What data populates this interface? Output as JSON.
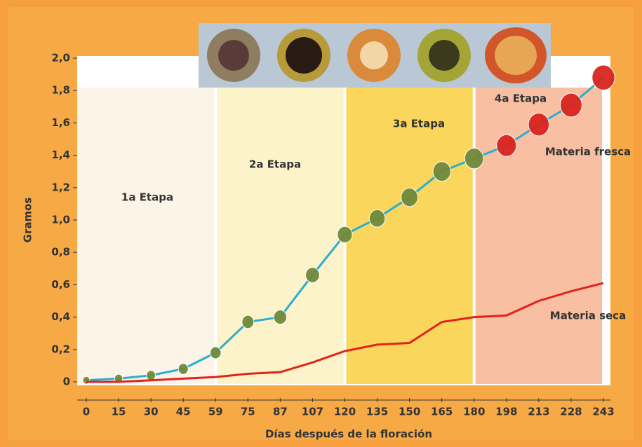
{
  "chart_data": {
    "type": "line",
    "x_label": "Días después de la floración",
    "y_label": "Gramos",
    "categories": [
      "0",
      "15",
      "30",
      "45",
      "59",
      "75",
      "87",
      "107",
      "120",
      "135",
      "150",
      "165",
      "180",
      "198",
      "213",
      "228",
      "243"
    ],
    "series": [
      {
        "name": "Materia fresca",
        "color": "#2aaed0",
        "values": [
          0.01,
          0.02,
          0.04,
          0.08,
          0.18,
          0.37,
          0.4,
          0.66,
          0.91,
          1.01,
          1.14,
          1.3,
          1.38,
          1.46,
          1.59,
          1.71,
          1.88
        ]
      },
      {
        "name": "Materia seca",
        "color": "#e2231a",
        "values": [
          0,
          0,
          0.01,
          0.02,
          0.03,
          0.05,
          0.06,
          0.12,
          0.19,
          0.23,
          0.24,
          0.37,
          0.4,
          0.41,
          0.5,
          0.56,
          0.61
        ]
      }
    ],
    "stages": [
      {
        "label": "1a Etapa",
        "start": "0",
        "end": "59",
        "color": "#fbf3e4",
        "fruit_color": "#6f8a3a"
      },
      {
        "label": "2a Etapa",
        "start": "59",
        "end": "120",
        "color": "#fdf2c4",
        "fruit_color": "#6f8a3a"
      },
      {
        "label": "3a Etapa",
        "start": "120",
        "end": "180",
        "color": "#fbd24a",
        "fruit_color": "#6f8a3a"
      },
      {
        "label": "4a Etapa",
        "start": "180",
        "end": "243",
        "color": "#f7b898",
        "fruit_color": "#d8251f"
      }
    ],
    "ylim": [
      0,
      2.0
    ],
    "yticks": [
      0,
      {
        "value": 0.2,
        "label": "0,2"
      },
      {
        "value": 0.4,
        "label": "0,4"
      },
      {
        "value": 0.6,
        "label": "0,6"
      },
      {
        "value": 0.8,
        "label": "0,8"
      },
      {
        "value": 1.0,
        "label": "1,0"
      },
      {
        "value": 1.2,
        "label": "1,2"
      },
      {
        "value": 1.4,
        "label": "1,4"
      },
      {
        "value": 1.6,
        "label": "1,6"
      },
      {
        "value": 1.8,
        "label": "1,8"
      },
      {
        "value": 2.0,
        "label": "2,0"
      }
    ]
  }
}
